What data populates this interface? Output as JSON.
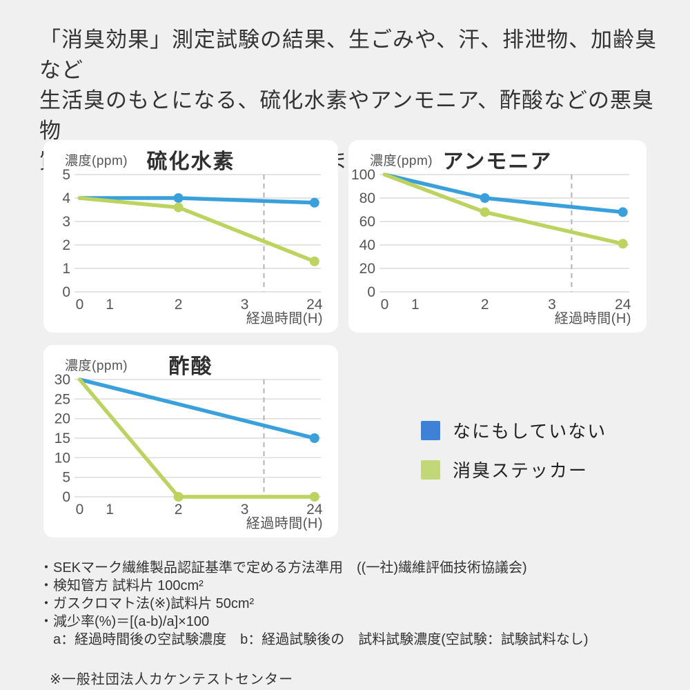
{
  "header": {
    "lines": [
      "「消臭効果」測定試験の結果、生ごみや、汗、排泄物、加齢臭など",
      "生活臭のもとになる、硫化水素やアンモニア、酢酸などの悪臭物",
      "質に対して消臭効果を発揮しました。"
    ]
  },
  "colors": {
    "background": "#f0f0f1",
    "card": "#ffffff",
    "grid": "#dcdcdc",
    "dashed_guide": "#b3b3b3",
    "tick_text": "#555555",
    "untreated_blue": "#3aa0dc",
    "sticker_green": "#bcd35f",
    "legend_blue": "#3d82d6",
    "legend_green": "#c2d878"
  },
  "chart_data": [
    {
      "type": "line",
      "title": "硫化水素",
      "ylabel": "濃度(ppm)",
      "xlabel": "経過時間(H)",
      "x_ticks": [
        0,
        1,
        2,
        3,
        24
      ],
      "x_scale": {
        "0": 0.01,
        "1": 0.135,
        "2": 0.42,
        "3": 0.695,
        "24": 0.985
      },
      "y_ticks": [
        5,
        4,
        3,
        2,
        1,
        0
      ],
      "ylim": [
        0,
        5
      ],
      "dashed_frac": 0.775,
      "grid": true,
      "series": [
        {
          "name": "なにもしていない",
          "color": "#3aa0dc",
          "x": [
            0,
            2,
            24
          ],
          "values": [
            4,
            4,
            3.8
          ],
          "markers": [
            false,
            true,
            true
          ]
        },
        {
          "name": "消臭ステッカー",
          "color": "#bcd35f",
          "x": [
            0,
            2,
            24
          ],
          "values": [
            4,
            3.6,
            1.3
          ],
          "markers": [
            false,
            true,
            true
          ]
        }
      ]
    },
    {
      "type": "line",
      "title": "アンモニア",
      "ylabel": "濃度(ppm)",
      "xlabel": "経過時間(H)",
      "x_ticks": [
        0,
        1,
        2,
        3,
        24
      ],
      "x_scale": {
        "0": 0.01,
        "1": 0.135,
        "2": 0.42,
        "3": 0.695,
        "24": 0.985
      },
      "y_ticks": [
        100,
        80,
        60,
        40,
        20,
        0
      ],
      "ylim": [
        0,
        100
      ],
      "dashed_frac": 0.775,
      "grid": true,
      "series": [
        {
          "name": "なにもしていない",
          "color": "#3aa0dc",
          "x": [
            0,
            2,
            24
          ],
          "values": [
            100,
            80,
            68
          ],
          "markers": [
            false,
            true,
            true
          ]
        },
        {
          "name": "消臭ステッカー",
          "color": "#bcd35f",
          "x": [
            0,
            2,
            24
          ],
          "values": [
            100,
            68,
            41
          ],
          "markers": [
            false,
            true,
            true
          ]
        }
      ]
    },
    {
      "type": "line",
      "title": "酢酸",
      "ylabel": "濃度(ppm)",
      "xlabel": "経過時間(H)",
      "x_ticks": [
        0,
        1,
        2,
        3,
        24
      ],
      "x_scale": {
        "0": 0.01,
        "1": 0.135,
        "2": 0.42,
        "3": 0.695,
        "24": 0.985
      },
      "y_ticks": [
        30,
        25,
        20,
        15,
        10,
        5,
        0
      ],
      "ylim": [
        0,
        30
      ],
      "dashed_frac": 0.775,
      "grid": true,
      "series": [
        {
          "name": "なにもしていない",
          "color": "#3aa0dc",
          "x": [
            0,
            24
          ],
          "values": [
            30,
            15
          ],
          "markers": [
            false,
            true
          ]
        },
        {
          "name": "消臭ステッカー",
          "color": "#bcd35f",
          "x": [
            0,
            2,
            24
          ],
          "values": [
            30,
            0,
            0
          ],
          "markers": [
            false,
            true,
            true
          ]
        }
      ]
    }
  ],
  "legend": {
    "items": [
      {
        "label": "なにもしていない",
        "color": "#3d82d6"
      },
      {
        "label": "消臭ステッカー",
        "color": "#c2d878"
      }
    ]
  },
  "footnotes": {
    "lines": [
      "・SEKマーク繊維製品認証基準で定める方法準用　((一社)繊維評価技術協議会)",
      "・検知管方 試料片 100cm²",
      "・ガスクロマト法(※)試料片 50cm²",
      "・減少率(%)＝[(a-b)/a]×100",
      "　a：経過時間後の空試験濃度　b：経過試験後の　試料試験濃度(空試験：試験試料なし)"
    ],
    "note": "※一般社団法人カケンテストセンター"
  }
}
